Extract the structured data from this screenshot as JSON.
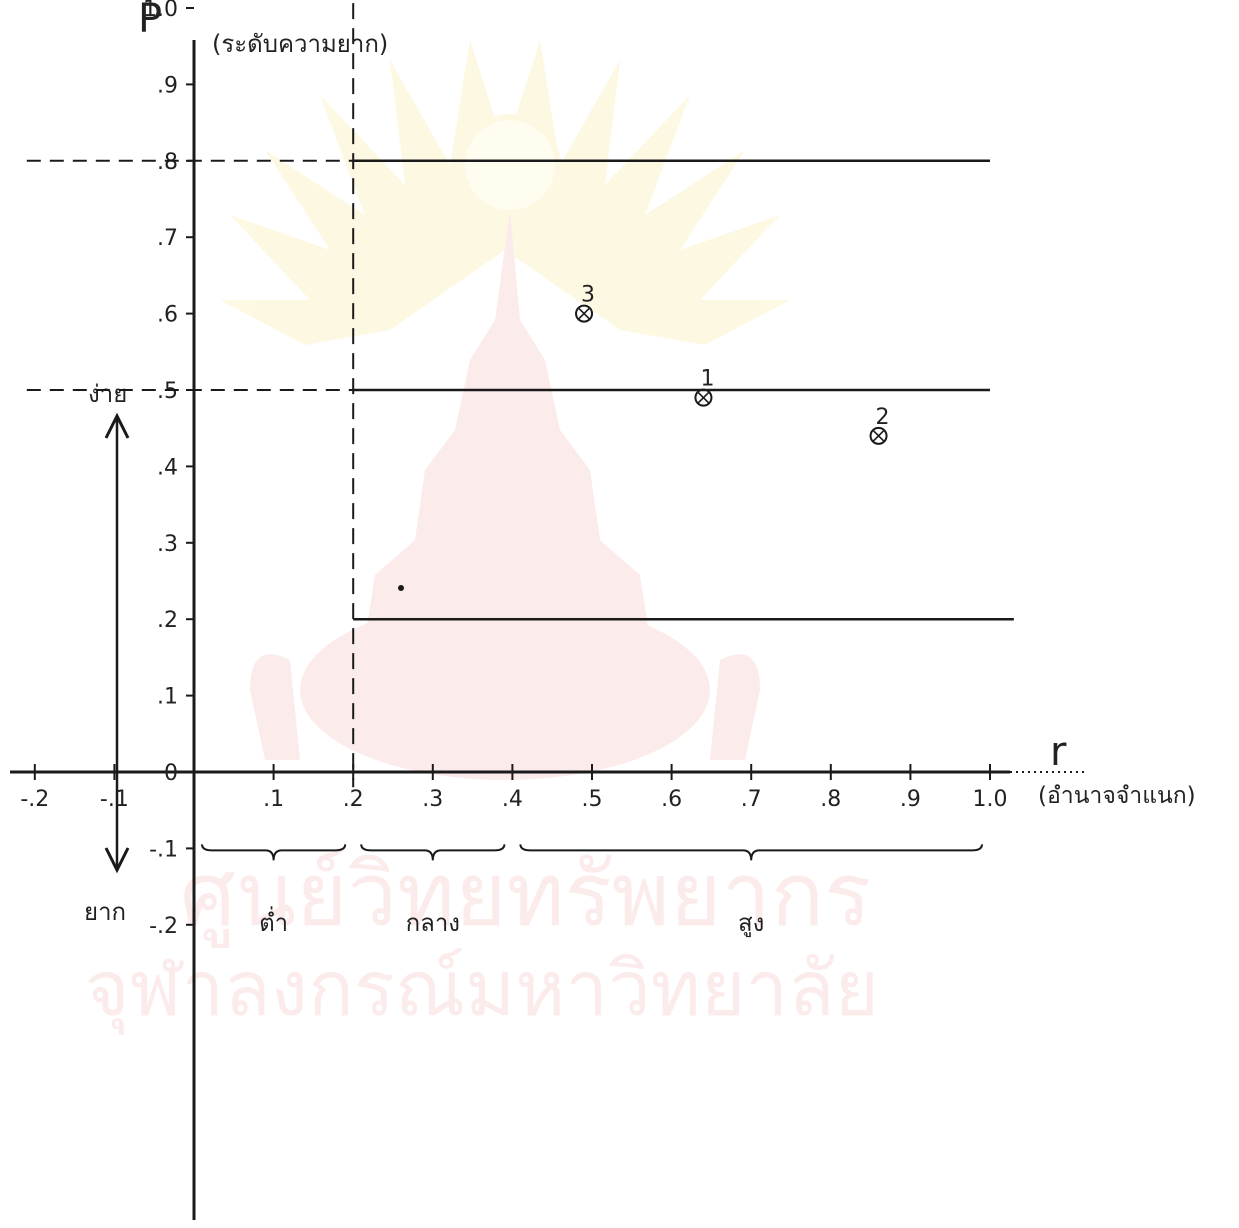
{
  "colors": {
    "ink": "#1a1a1a",
    "watermark": "#f2a6a6",
    "watermark_light": "#f9cccc",
    "watermark_emblem": "#f6e27a"
  },
  "chart_data": {
    "type": "scatter",
    "title": "",
    "ylabel": "P",
    "ylabel_note": "(ระดับความยาก)",
    "xlabel": "r",
    "xlabel_note": "(อำนาจจำแนก)",
    "xlim": [
      -0.2,
      1.0
    ],
    "ylim": [
      -0.2,
      1.0
    ],
    "x_ticks": [
      {
        "value": -0.2,
        "label": "-.2"
      },
      {
        "value": -0.1,
        "label": "-.1"
      },
      {
        "value": 0.1,
        "label": ".1"
      },
      {
        "value": 0.2,
        "label": ".2"
      },
      {
        "value": 0.3,
        "label": ".3"
      },
      {
        "value": 0.4,
        "label": ".4"
      },
      {
        "value": 0.5,
        "label": ".5"
      },
      {
        "value": 0.6,
        "label": ".6"
      },
      {
        "value": 0.7,
        "label": ".7"
      },
      {
        "value": 0.8,
        "label": ".8"
      },
      {
        "value": 0.9,
        "label": ".9"
      },
      {
        "value": 1.0,
        "label": "1.0"
      }
    ],
    "y_ticks": [
      {
        "value": 1.0,
        "label": "1.0"
      },
      {
        "value": 0.9,
        "label": ".9"
      },
      {
        "value": 0.8,
        "label": ".8"
      },
      {
        "value": 0.7,
        "label": ".7"
      },
      {
        "value": 0.6,
        "label": ".6"
      },
      {
        "value": 0.5,
        "label": ".5"
      },
      {
        "value": 0.4,
        "label": ".4"
      },
      {
        "value": 0.3,
        "label": ".3"
      },
      {
        "value": 0.2,
        "label": ".2"
      },
      {
        "value": 0.1,
        "label": ".1"
      },
      {
        "value": 0.0,
        "label": "0"
      },
      {
        "value": -0.1,
        "label": "-.1"
      },
      {
        "value": -0.2,
        "label": "-.2"
      }
    ],
    "h_lines": [
      {
        "y": 0.8,
        "dashed_from": -0.2,
        "dashed_to": 0.2,
        "solid_from": 0.2,
        "solid_to": 1.0
      },
      {
        "y": 0.5,
        "dashed_from": -0.2,
        "dashed_to": 0.2,
        "solid_from": 0.2,
        "solid_to": 1.0
      },
      {
        "y": 0.2,
        "dashed_from": 0.2,
        "dashed_to": 0.2,
        "solid_from": 0.2,
        "solid_to": 1.03
      }
    ],
    "v_line": {
      "x": 0.2,
      "y_from": -0.02,
      "y_to": 1.17,
      "style": "dashed"
    },
    "points": [
      {
        "label": "3",
        "x": 0.49,
        "y": 0.6
      },
      {
        "label": "1",
        "x": 0.64,
        "y": 0.49
      },
      {
        "label": "2",
        "x": 0.86,
        "y": 0.44
      }
    ],
    "difficulty_labels": {
      "easy": "ง่าย",
      "hard": "ยาก"
    },
    "ranges": [
      {
        "label": "ต่ำ",
        "from": 0.0,
        "to": 0.2
      },
      {
        "label": "กลาง",
        "from": 0.2,
        "to": 0.4
      },
      {
        "label": "สูง",
        "from": 0.4,
        "to": 1.0
      }
    ],
    "grid": false,
    "legend": "none"
  },
  "watermark": {
    "line1": "ศูนย์วิทยทรัพยากร",
    "line2": "จุฬาลงกรณ์มหาวิทยาลัย"
  }
}
